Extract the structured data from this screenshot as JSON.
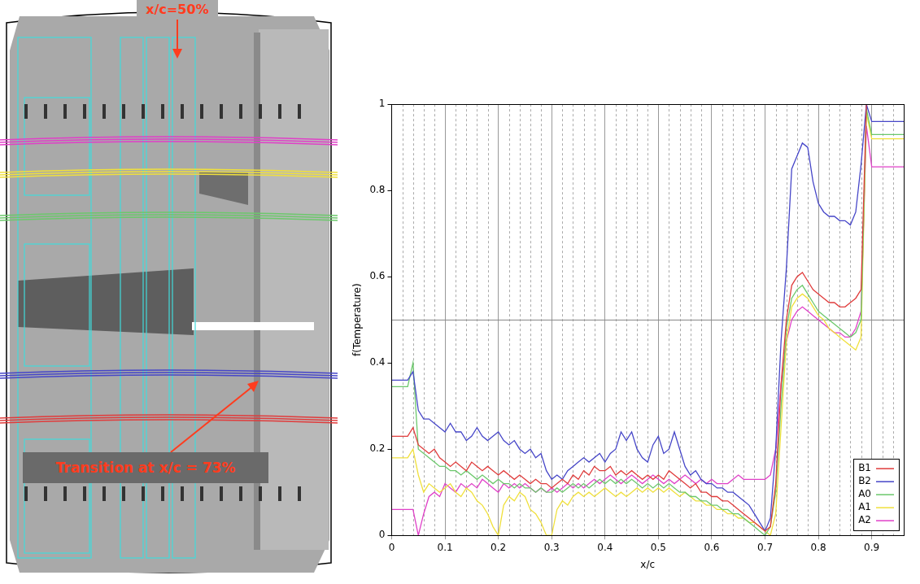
{
  "chart_data": {
    "type": "line",
    "x_label": "x/c",
    "y_label": "f(Temperature)",
    "x": [
      0,
      0.01,
      0.02,
      0.03,
      0.04,
      0.05,
      0.06,
      0.07,
      0.08,
      0.09,
      0.1,
      0.11,
      0.12,
      0.13,
      0.14,
      0.15,
      0.16,
      0.17,
      0.18,
      0.19,
      0.2,
      0.21,
      0.22,
      0.23,
      0.24,
      0.25,
      0.26,
      0.27,
      0.28,
      0.29,
      0.3,
      0.31,
      0.32,
      0.33,
      0.34,
      0.35,
      0.36,
      0.37,
      0.38,
      0.39,
      0.4,
      0.41,
      0.42,
      0.43,
      0.44,
      0.45,
      0.46,
      0.47,
      0.48,
      0.49,
      0.5,
      0.51,
      0.52,
      0.53,
      0.54,
      0.55,
      0.56,
      0.57,
      0.58,
      0.59,
      0.6,
      0.61,
      0.62,
      0.63,
      0.64,
      0.65,
      0.66,
      0.67,
      0.68,
      0.69,
      0.7,
      0.71,
      0.72,
      0.73,
      0.74,
      0.75,
      0.76,
      0.77,
      0.78,
      0.79,
      0.8,
      0.81,
      0.82,
      0.83,
      0.84,
      0.85,
      0.86,
      0.87,
      0.88,
      0.89,
      0.9,
      0.91,
      0.92,
      0.93,
      0.94,
      0.95,
      0.96
    ],
    "series": [
      {
        "name": "B1",
        "color": "#e03c3c",
        "values": [
          0.23,
          0.23,
          0.23,
          0.23,
          0.25,
          0.21,
          0.2,
          0.19,
          0.2,
          0.18,
          0.17,
          0.16,
          0.17,
          0.16,
          0.15,
          0.17,
          0.16,
          0.15,
          0.16,
          0.15,
          0.14,
          0.15,
          0.14,
          0.13,
          0.14,
          0.13,
          0.12,
          0.13,
          0.12,
          0.12,
          0.11,
          0.12,
          0.13,
          0.12,
          0.14,
          0.13,
          0.15,
          0.14,
          0.16,
          0.15,
          0.15,
          0.16,
          0.14,
          0.15,
          0.14,
          0.15,
          0.14,
          0.13,
          0.14,
          0.13,
          0.14,
          0.13,
          0.15,
          0.14,
          0.13,
          0.12,
          0.11,
          0.12,
          0.1,
          0.1,
          0.09,
          0.09,
          0.08,
          0.08,
          0.07,
          0.06,
          0.05,
          0.04,
          0.03,
          0.02,
          0.01,
          0.02,
          0.12,
          0.35,
          0.5,
          0.58,
          0.6,
          0.61,
          0.59,
          0.57,
          0.56,
          0.55,
          0.54,
          0.54,
          0.53,
          0.53,
          0.54,
          0.55,
          0.57,
          1.0,
          1.0,
          1.0,
          1.0,
          1.0,
          1.0,
          1.0,
          1.0
        ]
      },
      {
        "name": "B2",
        "color": "#4646c8",
        "values": [
          0.36,
          0.36,
          0.36,
          0.36,
          0.38,
          0.29,
          0.27,
          0.27,
          0.26,
          0.25,
          0.24,
          0.26,
          0.24,
          0.24,
          0.22,
          0.23,
          0.25,
          0.23,
          0.22,
          0.23,
          0.24,
          0.22,
          0.21,
          0.22,
          0.2,
          0.19,
          0.2,
          0.18,
          0.19,
          0.15,
          0.13,
          0.14,
          0.13,
          0.15,
          0.16,
          0.17,
          0.18,
          0.17,
          0.18,
          0.19,
          0.17,
          0.19,
          0.2,
          0.24,
          0.22,
          0.24,
          0.2,
          0.18,
          0.17,
          0.21,
          0.23,
          0.19,
          0.2,
          0.24,
          0.2,
          0.16,
          0.14,
          0.15,
          0.13,
          0.12,
          0.12,
          0.11,
          0.11,
          0.1,
          0.1,
          0.09,
          0.08,
          0.07,
          0.05,
          0.03,
          0.01,
          0.04,
          0.2,
          0.45,
          0.62,
          0.85,
          0.88,
          0.91,
          0.9,
          0.82,
          0.77,
          0.75,
          0.74,
          0.74,
          0.73,
          0.73,
          0.72,
          0.75,
          0.86,
          1.0,
          0.96,
          0.96,
          0.96,
          0.96,
          0.96,
          0.96,
          0.96
        ]
      },
      {
        "name": "A0",
        "color": "#6cc86c",
        "values": [
          0.345,
          0.345,
          0.345,
          0.345,
          0.4,
          0.2,
          0.19,
          0.18,
          0.17,
          0.16,
          0.16,
          0.15,
          0.15,
          0.14,
          0.15,
          0.14,
          0.13,
          0.14,
          0.13,
          0.12,
          0.13,
          0.12,
          0.12,
          0.11,
          0.12,
          0.11,
          0.11,
          0.1,
          0.11,
          0.1,
          0.1,
          0.11,
          0.1,
          0.11,
          0.12,
          0.11,
          0.12,
          0.11,
          0.12,
          0.13,
          0.12,
          0.13,
          0.12,
          0.13,
          0.12,
          0.13,
          0.12,
          0.11,
          0.12,
          0.11,
          0.12,
          0.11,
          0.12,
          0.11,
          0.1,
          0.1,
          0.09,
          0.09,
          0.08,
          0.08,
          0.07,
          0.07,
          0.06,
          0.06,
          0.05,
          0.05,
          0.04,
          0.03,
          0.02,
          0.01,
          0.0,
          0.02,
          0.1,
          0.3,
          0.48,
          0.55,
          0.57,
          0.58,
          0.56,
          0.54,
          0.52,
          0.51,
          0.5,
          0.49,
          0.48,
          0.47,
          0.46,
          0.47,
          0.5,
          0.99,
          0.93,
          0.93,
          0.93,
          0.93,
          0.93,
          0.93,
          0.93
        ]
      },
      {
        "name": "A1",
        "color": "#f0e03c",
        "values": [
          0.18,
          0.18,
          0.18,
          0.18,
          0.2,
          0.14,
          0.1,
          0.12,
          0.11,
          0.1,
          0.11,
          0.12,
          0.1,
          0.09,
          0.11,
          0.1,
          0.08,
          0.07,
          0.05,
          0.02,
          0.0,
          0.07,
          0.09,
          0.08,
          0.1,
          0.09,
          0.06,
          0.05,
          0.03,
          0.0,
          0.0,
          0.06,
          0.08,
          0.07,
          0.09,
          0.1,
          0.09,
          0.1,
          0.09,
          0.1,
          0.11,
          0.1,
          0.09,
          0.1,
          0.09,
          0.1,
          0.11,
          0.1,
          0.11,
          0.1,
          0.11,
          0.1,
          0.11,
          0.1,
          0.09,
          0.1,
          0.09,
          0.08,
          0.08,
          0.07,
          0.07,
          0.06,
          0.06,
          0.05,
          0.05,
          0.04,
          0.04,
          0.03,
          0.03,
          0.02,
          0.01,
          0.0,
          0.05,
          0.25,
          0.45,
          0.53,
          0.55,
          0.56,
          0.55,
          0.53,
          0.51,
          0.5,
          0.48,
          0.47,
          0.46,
          0.45,
          0.44,
          0.43,
          0.46,
          0.98,
          0.92,
          0.92,
          0.92,
          0.92,
          0.92,
          0.92,
          0.92
        ]
      },
      {
        "name": "A2",
        "color": "#e040c8",
        "values": [
          0.06,
          0.06,
          0.06,
          0.06,
          0.06,
          0.0,
          0.05,
          0.09,
          0.1,
          0.09,
          0.12,
          0.11,
          0.1,
          0.12,
          0.11,
          0.12,
          0.11,
          0.13,
          0.12,
          0.11,
          0.1,
          0.12,
          0.11,
          0.12,
          0.11,
          0.12,
          0.11,
          0.1,
          0.11,
          0.1,
          0.11,
          0.1,
          0.11,
          0.12,
          0.11,
          0.12,
          0.11,
          0.12,
          0.13,
          0.12,
          0.13,
          0.14,
          0.13,
          0.12,
          0.13,
          0.14,
          0.13,
          0.12,
          0.13,
          0.14,
          0.13,
          0.12,
          0.13,
          0.12,
          0.13,
          0.14,
          0.13,
          0.12,
          0.13,
          0.12,
          0.13,
          0.12,
          0.12,
          0.12,
          0.13,
          0.14,
          0.13,
          0.13,
          0.13,
          0.13,
          0.13,
          0.14,
          0.2,
          0.35,
          0.45,
          0.5,
          0.52,
          0.53,
          0.52,
          0.51,
          0.5,
          0.49,
          0.48,
          0.47,
          0.47,
          0.46,
          0.46,
          0.48,
          0.52,
          0.95,
          0.855,
          0.855,
          0.855,
          0.855,
          0.855,
          0.855,
          0.855
        ]
      }
    ],
    "xlim": [
      0,
      0.96
    ],
    "xticks": [
      0,
      0.1,
      0.2,
      0.3,
      0.4,
      0.5,
      0.6,
      0.7,
      0.8,
      0.9
    ],
    "ylim": [
      0,
      1
    ],
    "yticks": [
      0,
      0.2,
      0.4,
      0.6,
      0.8,
      1
    ],
    "grid": true,
    "legend": "lower right"
  },
  "image_panel": {
    "annotations": [
      "x/c=50%",
      "Transition at x/c = 73%"
    ]
  }
}
